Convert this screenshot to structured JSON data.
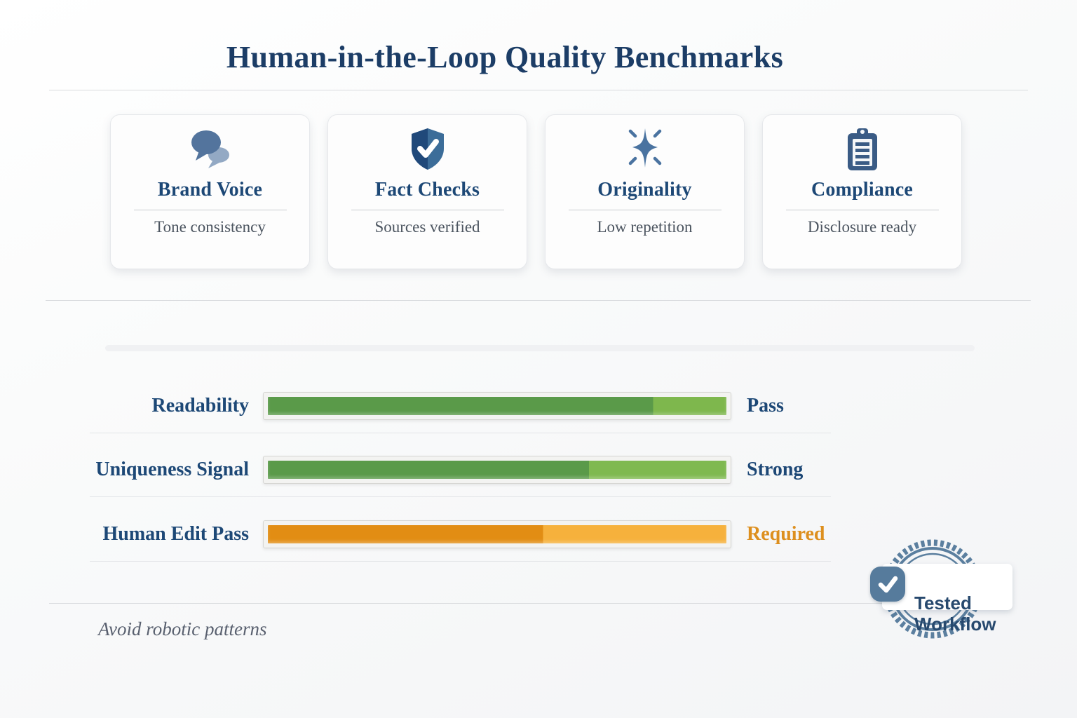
{
  "page": {
    "title": "Human-in-the-Loop Quality Benchmarks",
    "note": "Avoid robotic patterns"
  },
  "cards": [
    {
      "title": "Brand Voice",
      "subtitle": "Tone consistency",
      "icon": "speech-bubbles"
    },
    {
      "title": "Fact Checks",
      "subtitle": "Sources verified",
      "icon": "shield-check"
    },
    {
      "title": "Originality",
      "subtitle": "Low repetition",
      "icon": "sparkle"
    },
    {
      "title": "Compliance",
      "subtitle": "Disclosure ready",
      "icon": "clipboard"
    }
  ],
  "benchmarks": {
    "rows": [
      {
        "label": "Readability",
        "status": "Pass",
        "fill_percent": 100,
        "split_percent": 84,
        "color_dark": "#5a9a49",
        "color_light": "#7eb74d",
        "status_color": "#1d4876"
      },
      {
        "label": "Uniqueness Signal",
        "status": "Strong",
        "fill_percent": 100,
        "split_percent": 70,
        "color_dark": "#5a9a49",
        "color_light": "#7fb950",
        "status_color": "#1d4876"
      },
      {
        "label": "Human Edit Pass",
        "status": "Required",
        "fill_percent": 100,
        "split_percent": 60,
        "color_dark": "#e28d13",
        "color_light": "#f6b13c",
        "status_color": "#dd8f1e"
      }
    ]
  },
  "badge": {
    "line1": "Tested",
    "line2": "Workflow"
  },
  "colors": {
    "accent_navy": "#1d4876",
    "icon_blue": "#53749d",
    "badge_blue": "#567b9c",
    "green_dark": "#5a9a49",
    "green_light": "#7eb74d",
    "orange_dark": "#e28d13",
    "orange_light": "#f6b13c"
  },
  "chart_data": {
    "type": "bar",
    "title": "Human-in-the-Loop Quality Benchmarks",
    "categories": [
      "Readability",
      "Uniqueness Signal",
      "Human Edit Pass"
    ],
    "values": [
      84,
      70,
      60
    ],
    "labels": [
      "Pass",
      "Strong",
      "Required"
    ],
    "xlabel": "",
    "ylabel": "",
    "note": "meters fully filled; dark segment = score portion"
  }
}
